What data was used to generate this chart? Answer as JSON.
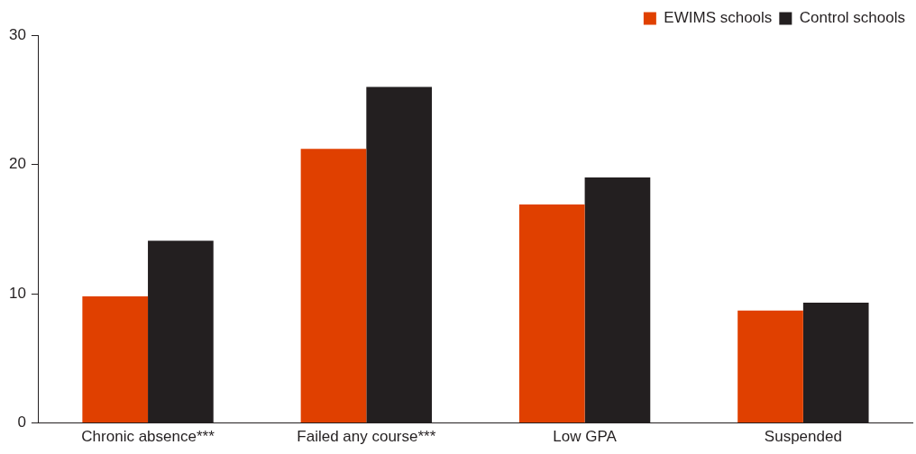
{
  "chart_data": {
    "type": "bar",
    "categories": [
      "Chronic absence***",
      "Failed any course***",
      "Low GPA",
      "Suspended"
    ],
    "series": [
      {
        "name": "EWIMS schools",
        "color": "#e04000",
        "values": [
          9.8,
          21.2,
          16.9,
          8.7
        ]
      },
      {
        "name": "Control schools",
        "color": "#231f20",
        "values": [
          14.1,
          26.0,
          19.0,
          9.3
        ]
      }
    ],
    "ylim": [
      0,
      30
    ],
    "yticks": [
      0,
      10,
      20,
      30
    ],
    "grid": false,
    "legend": "top right"
  }
}
